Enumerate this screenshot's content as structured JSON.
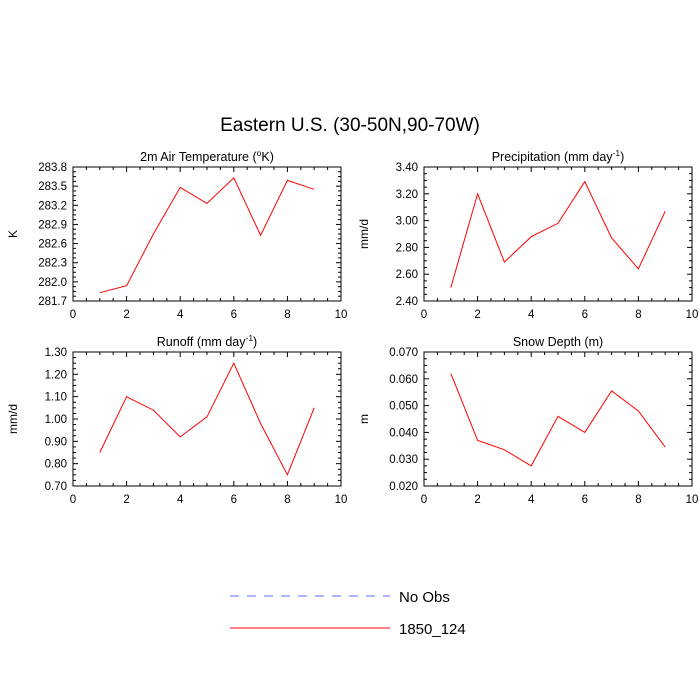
{
  "figure": {
    "title": "Eastern U.S. (30-50N,90-70W)"
  },
  "legend": {
    "items": [
      {
        "label": "No Obs",
        "color": "#6666ff",
        "style": "dashed"
      },
      {
        "label": "1850_124",
        "color": "#ff0000",
        "style": "solid"
      }
    ]
  },
  "chart_data": [
    {
      "type": "line",
      "title": "2m Air Temperature (°K)",
      "title_main": "2m Air Temperature (",
      "title_sup": "o",
      "title_end": "K)",
      "ylabel": "K",
      "xlim": [
        0,
        10
      ],
      "ylim": [
        281.7,
        283.8
      ],
      "xticks": [
        0,
        2,
        4,
        6,
        8,
        10
      ],
      "yticks": [
        281.7,
        282.0,
        282.3,
        282.6,
        282.9,
        283.2,
        283.5,
        283.8
      ],
      "ytick_labels": [
        "281.7",
        "282.0",
        "282.3",
        "282.6",
        "282.9",
        "283.2",
        "283.5",
        "283.8"
      ],
      "grid": false,
      "series": [
        {
          "name": "1850_124",
          "color": "#ff0000",
          "x": [
            1,
            2,
            3,
            4,
            5,
            6,
            7,
            8,
            9
          ],
          "y": [
            281.83,
            281.94,
            282.75,
            283.48,
            283.23,
            283.63,
            282.73,
            283.59,
            283.45
          ]
        }
      ]
    },
    {
      "type": "line",
      "title": "Precipitation (mm day-1)",
      "title_main": "Precipitation (mm day",
      "title_sup": "-1",
      "title_end": ")",
      "ylabel": "mm/d",
      "xlim": [
        0,
        10
      ],
      "ylim": [
        2.4,
        3.4
      ],
      "xticks": [
        0,
        2,
        4,
        6,
        8,
        10
      ],
      "yticks": [
        2.4,
        2.6,
        2.8,
        3.0,
        3.2,
        3.4
      ],
      "ytick_labels": [
        "2.40",
        "2.60",
        "2.80",
        "3.00",
        "3.20",
        "3.40"
      ],
      "grid": false,
      "series": [
        {
          "name": "1850_124",
          "color": "#ff0000",
          "x": [
            1,
            2,
            3,
            4,
            5,
            6,
            7,
            8,
            9
          ],
          "y": [
            2.5,
            3.2,
            2.69,
            2.88,
            2.98,
            3.29,
            2.87,
            2.64,
            3.07
          ]
        }
      ]
    },
    {
      "type": "line",
      "title": "Runoff (mm day-1)",
      "title_main": "Runoff (mm day",
      "title_sup": "-1",
      "title_end": ")",
      "ylabel": "mm/d",
      "xlim": [
        0,
        10
      ],
      "ylim": [
        0.7,
        1.3
      ],
      "xticks": [
        0,
        2,
        4,
        6,
        8,
        10
      ],
      "yticks": [
        0.7,
        0.8,
        0.9,
        1.0,
        1.1,
        1.2,
        1.3
      ],
      "ytick_labels": [
        "0.70",
        "0.80",
        "0.90",
        "1.00",
        "1.10",
        "1.20",
        "1.30"
      ],
      "grid": false,
      "series": [
        {
          "name": "1850_124",
          "color": "#ff0000",
          "x": [
            1,
            2,
            3,
            4,
            5,
            6,
            7,
            8,
            9
          ],
          "y": [
            0.85,
            1.1,
            1.04,
            0.92,
            1.01,
            1.25,
            0.98,
            0.75,
            1.05
          ]
        }
      ]
    },
    {
      "type": "line",
      "title": "Snow Depth (m)",
      "title_main": "Snow Depth (m)",
      "title_sup": "",
      "title_end": "",
      "ylabel": "m",
      "xlim": [
        0,
        10
      ],
      "ylim": [
        0.02,
        0.07
      ],
      "xticks": [
        0,
        2,
        4,
        6,
        8,
        10
      ],
      "yticks": [
        0.02,
        0.03,
        0.04,
        0.05,
        0.06,
        0.07
      ],
      "ytick_labels": [
        "0.020",
        "0.030",
        "0.040",
        "0.050",
        "0.060",
        "0.070"
      ],
      "grid": false,
      "series": [
        {
          "name": "1850_124",
          "color": "#ff0000",
          "x": [
            1,
            2,
            3,
            4,
            5,
            6,
            7,
            8,
            9
          ],
          "y": [
            0.062,
            0.037,
            0.0335,
            0.0275,
            0.046,
            0.04,
            0.0555,
            0.048,
            0.0345
          ]
        }
      ]
    }
  ]
}
